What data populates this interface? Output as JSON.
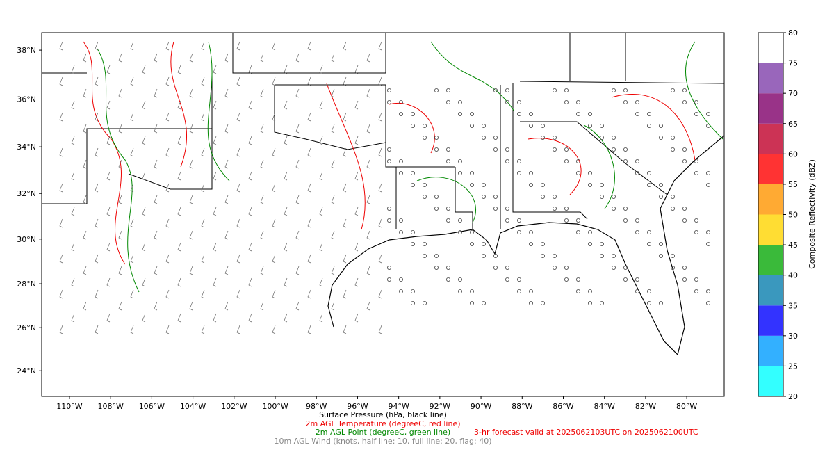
{
  "map": {
    "projection": "mercator",
    "xlim": [
      -111.35,
      -78.18
    ],
    "ylim": [
      22.8,
      38.7
    ],
    "xticks": [
      {
        "value": -110,
        "label": "110°W"
      },
      {
        "value": -108,
        "label": "108°W"
      },
      {
        "value": -106,
        "label": "106°W"
      },
      {
        "value": -104,
        "label": "104°W"
      },
      {
        "value": -102,
        "label": "102°W"
      },
      {
        "value": -100,
        "label": "100°W"
      },
      {
        "value": -98,
        "label": "98°W"
      },
      {
        "value": -96,
        "label": "96°W"
      },
      {
        "value": -94,
        "label": "94°W"
      },
      {
        "value": -92,
        "label": "92°W"
      },
      {
        "value": -90,
        "label": "90°W"
      },
      {
        "value": -88,
        "label": "88°W"
      },
      {
        "value": -86,
        "label": "86°W"
      },
      {
        "value": -84,
        "label": "84°W"
      },
      {
        "value": -82,
        "label": "82°W"
      },
      {
        "value": -80,
        "label": "80°W"
      }
    ],
    "yticks": [
      {
        "value": 24,
        "label": "24°N"
      },
      {
        "value": 26,
        "label": "26°N"
      },
      {
        "value": 28,
        "label": "28°N"
      },
      {
        "value": 30,
        "label": "30°N"
      },
      {
        "value": 32,
        "label": "32°N"
      },
      {
        "value": 34,
        "label": "34°N"
      },
      {
        "value": 36,
        "label": "36°N"
      },
      {
        "value": 38,
        "label": "38°N"
      }
    ]
  },
  "colorbar": {
    "label": "Composite Reflectivity (dBZ)",
    "levels": [
      20,
      25,
      30,
      35,
      40,
      45,
      50,
      55,
      60,
      65,
      70,
      75,
      80
    ],
    "colors": [
      "#33ffff",
      "#33b0ff",
      "#3333ff",
      "#3a98be",
      "#3aba3a",
      "#ffdd33",
      "#ffaa33",
      "#ff3333",
      "#cc3355",
      "#993388",
      "#9966bb",
      "#ffffff"
    ]
  },
  "captions": {
    "pressure": "Surface Pressure (hPa, black line)",
    "temperature": "2m AGL Temperature (degreeC, red line)",
    "dewpoint": "2m AGL Point (degreeC, green line)",
    "forecast": "3-hr forecast valid at 2025062103UTC on 2025062100UTC",
    "wind": "10m AGL Wind (knots, half line: 10, full line: 20, flag: 40)"
  }
}
